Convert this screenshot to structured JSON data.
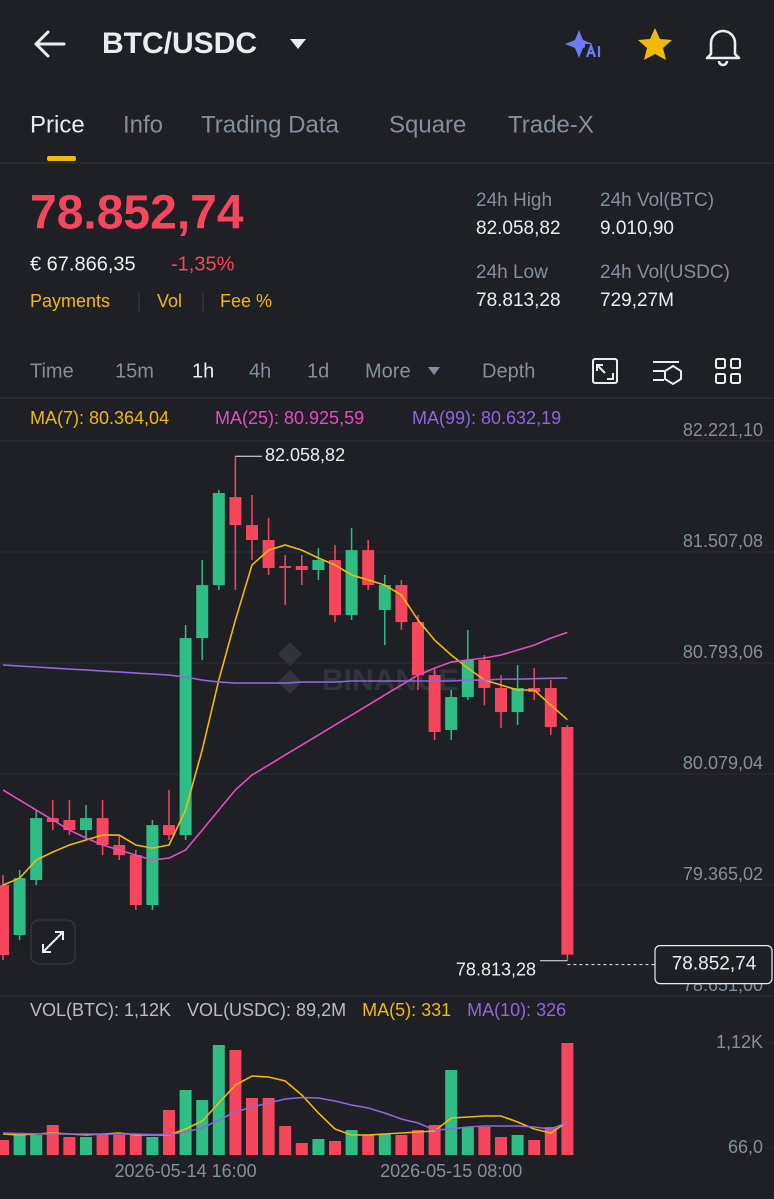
{
  "header": {
    "pair": "BTC/USDC"
  },
  "tabs": [
    "Price",
    "Info",
    "Trading Data",
    "Square",
    "Trade-X"
  ],
  "price": {
    "last": "78.852,74",
    "fiat": "€ 67.866,35",
    "change": "-1,35%"
  },
  "links": [
    "Payments",
    "Vol",
    "Fee %"
  ],
  "stats": [
    {
      "label": "24h High",
      "value": "82.058,82"
    },
    {
      "label": "24h Vol(BTC)",
      "value": "9.010,90"
    },
    {
      "label": "24h Low",
      "value": "78.813,28"
    },
    {
      "label": "24h Vol(USDC)",
      "value": "729,27M"
    }
  ],
  "intervals": [
    "Time",
    "15m",
    "1h",
    "4h",
    "1d",
    "More",
    "Depth"
  ],
  "watermark": "BINANCE",
  "chart_data": [
    {
      "type": "candlestick",
      "up_color": "#2ebd85",
      "down_color": "#f6465d",
      "ylim": [
        78651.0,
        82221.1
      ],
      "yticks": [
        {
          "value": 82221.1,
          "label": "82.221,10"
        },
        {
          "value": 81507.08,
          "label": "81.507,08"
        },
        {
          "value": 80793.06,
          "label": "80.793,06"
        },
        {
          "value": 80079.04,
          "label": "80.079,04"
        },
        {
          "value": 79365.02,
          "label": "79.365,02"
        },
        {
          "value": 78651.0,
          "label": "78.651,00"
        }
      ],
      "grid": true,
      "open": [
        79300,
        78979,
        79333,
        79731,
        79719,
        79654,
        79731,
        79558,
        79493,
        79172,
        79686,
        79622,
        80889,
        81230,
        81796,
        81616,
        81520,
        81353,
        81353,
        81327,
        81391,
        81037,
        81455,
        81070,
        81230,
        80992,
        80651,
        80298,
        80510,
        80748,
        80568,
        80413,
        80568,
        80568,
        80317
      ],
      "high": [
        79365,
        79397,
        79783,
        79847,
        79847,
        79815,
        79847,
        79622,
        79526,
        79719,
        79912,
        80973,
        81391,
        81841,
        82058.82,
        81809,
        81661,
        81423,
        81423,
        81468,
        81488,
        81597,
        81520,
        81295,
        81263,
        81037,
        80696,
        80555,
        80941,
        80780,
        80651,
        80716,
        80696,
        80619,
        80330
      ],
      "low": [
        78818,
        78947,
        79300,
        79654,
        79622,
        79590,
        79493,
        79461,
        79140,
        79140,
        79590,
        79590,
        80748,
        81198,
        81198,
        81391,
        81295,
        81102,
        81230,
        81263,
        80992,
        81005,
        81198,
        80844,
        80941,
        80555,
        80233,
        80233,
        80491,
        80458,
        80310,
        80330,
        80491,
        80265,
        78813.28
      ],
      "close": [
        78850,
        79345,
        79731,
        79706,
        79654,
        79731,
        79558,
        79493,
        79172,
        79686,
        79622,
        80889,
        81230,
        81822,
        81616,
        81520,
        81340,
        81340,
        81327,
        81391,
        81037,
        81455,
        81230,
        81230,
        80992,
        80651,
        80285,
        80510,
        80748,
        80568,
        80413,
        80568,
        80542,
        80317,
        78852.74
      ],
      "ma_lines": [
        {
          "label": "MA(7): 80.364,04",
          "color": "#f0b90b",
          "values": [
            79300,
            79345,
            79461,
            79513,
            79558,
            79590,
            79622,
            79622,
            79558,
            79538,
            79558,
            79783,
            80169,
            80619,
            81005,
            81359,
            81455,
            81488,
            81455,
            81404,
            81359,
            81295,
            81263,
            81230,
            81166,
            81005,
            80876,
            80780,
            80696,
            80619,
            80587,
            80555,
            80555,
            80458,
            80364.04
          ]
        },
        {
          "label": "MA(25): 80.925,59",
          "color": "#e24ebd",
          "values": [
            79912,
            79847,
            79783,
            79719,
            79654,
            79603,
            79558,
            79526,
            79493,
            79461,
            79474,
            79526,
            79654,
            79783,
            79912,
            80008,
            80072,
            80137,
            80201,
            80265,
            80330,
            80394,
            80458,
            80523,
            80587,
            80651,
            80696,
            80735,
            80748,
            80761,
            80780,
            80812,
            80844,
            80889,
            80925.59
          ]
        },
        {
          "label": "MA(99): 80.632,19",
          "color": "#9166d8",
          "values": [
            80716,
            80709,
            80703,
            80696,
            80690,
            80684,
            80677,
            80671,
            80664,
            80658,
            80651,
            80638,
            80619,
            80606,
            80600,
            80600,
            80600,
            80600,
            80606,
            80606,
            80606,
            80613,
            80613,
            80613,
            80613,
            80613,
            80613,
            80613,
            80619,
            80619,
            80625,
            80625,
            80628,
            80630,
            80632.19
          ]
        }
      ],
      "max_marker": {
        "value": 82058.82,
        "label": "82.058,82"
      },
      "min_marker": {
        "value": 78813.28,
        "label": "78.813,28"
      },
      "last_price": {
        "value": 78852.74,
        "label": "78.852,74"
      }
    },
    {
      "type": "bar",
      "legend": [
        "VOL(BTC): 1,12K",
        "VOL(USDC): 89,2M"
      ],
      "categories": [
        null,
        null,
        null,
        null,
        null,
        null,
        null,
        null,
        null,
        null,
        null,
        "2026-05-14 16:00",
        null,
        null,
        null,
        null,
        null,
        null,
        null,
        null,
        null,
        null,
        null,
        null,
        null,
        null,
        null,
        "2026-05-15 08:00",
        null,
        null,
        null,
        null,
        null,
        null,
        null
      ],
      "values": [
        150,
        200,
        200,
        300,
        180,
        180,
        200,
        200,
        200,
        180,
        450,
        650,
        550,
        1100,
        1050,
        570,
        570,
        290,
        120,
        160,
        140,
        250,
        200,
        210,
        200,
        250,
        300,
        850,
        280,
        280,
        180,
        200,
        150,
        280,
        1120
      ],
      "ylim": [
        0,
        1200
      ],
      "yticks": [
        {
          "value": 1120,
          "label": "1,12K"
        },
        {
          "value": 66,
          "label": "66,0"
        }
      ],
      "ma_lines": [
        {
          "label": "MA(5): 331",
          "color": "#f0b90b",
          "values": [
            210,
            200,
            210,
            220,
            210,
            200,
            210,
            220,
            200,
            200,
            200,
            260,
            340,
            520,
            700,
            790,
            780,
            740,
            600,
            420,
            260,
            200,
            200,
            210,
            220,
            230,
            240,
            370,
            380,
            390,
            390,
            330,
            260,
            220,
            331
          ]
        },
        {
          "label": "MA(10): 326",
          "color": "#9166d8",
          "values": [
            220,
            215,
            212,
            210,
            210,
            210,
            208,
            210,
            210,
            205,
            205,
            230,
            270,
            350,
            430,
            480,
            520,
            560,
            575,
            570,
            540,
            500,
            470,
            420,
            360,
            320,
            250,
            260,
            280,
            290,
            290,
            290,
            280,
            260,
            326
          ]
        }
      ]
    }
  ]
}
